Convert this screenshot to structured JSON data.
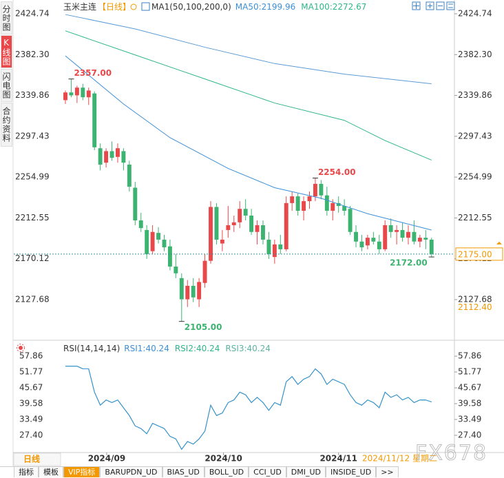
{
  "sidebar": [
    "分时图",
    "K线图",
    "闪电图",
    "合约资料"
  ],
  "header": {
    "symbol": "玉米主连",
    "period": "【日线】",
    "indicator": "MA1(50,100,200,0)"
  },
  "chart_data": [
    {
      "type": "candlestick",
      "xlim": [
        -0.83,
        66.94
      ],
      "ylim": [
        2088.3,
        2435.5
      ],
      "yticks": [
        2424.74,
        {
          "value": 2382.3,
          "label": "2382.30"
        },
        2339.86,
        2297.43,
        2254.99,
        2212.55,
        2170.12,
        2127.68
      ],
      "xticks": [
        {
          "value": 7.1,
          "label": "2024/09"
        },
        {
          "value": 27.2,
          "label": "2024/10"
        },
        {
          "value": 47,
          "label": "2024/11"
        }
      ],
      "grid": false,
      "up_color": "#e8484a",
      "down_color": "#3cb371",
      "candles": {
        "open": [
          2335,
          2343,
          2340,
          2348,
          2338,
          2342,
          2285,
          2270,
          2282,
          2276,
          2282,
          2268,
          2244,
          2210,
          2200,
          2178,
          2197,
          2190,
          2183,
          2162,
          2150,
          2128,
          2142,
          2128,
          2145,
          2168,
          2224,
          2186,
          2200,
          2205,
          2208,
          2222,
          2215,
          2198,
          2205,
          2190,
          2172,
          2185,
          2180,
          2228,
          2235,
          2220,
          2230,
          2235,
          2248,
          2236,
          2220,
          2228,
          2225,
          2222,
          2198,
          2188,
          2184,
          2192,
          2188,
          2180,
          2205,
          2198,
          2200,
          2192,
          2198,
          2188,
          2192,
          2190
        ],
        "high": [
          2345,
          2357,
          2350,
          2352,
          2348,
          2344,
          2290,
          2285,
          2292,
          2290,
          2285,
          2272,
          2250,
          2218,
          2205,
          2205,
          2203,
          2195,
          2190,
          2175,
          2155,
          2148,
          2150,
          2150,
          2175,
          2230,
          2228,
          2200,
          2225,
          2215,
          2230,
          2232,
          2222,
          2210,
          2210,
          2198,
          2190,
          2195,
          2235,
          2240,
          2238,
          2235,
          2240,
          2254,
          2252,
          2245,
          2232,
          2235,
          2232,
          2225,
          2205,
          2195,
          2195,
          2198,
          2195,
          2210,
          2212,
          2205,
          2208,
          2205,
          2210,
          2195,
          2200,
          2192
        ],
        "low": [
          2331,
          2338,
          2332,
          2335,
          2330,
          2283,
          2262,
          2265,
          2272,
          2270,
          2262,
          2240,
          2205,
          2198,
          2170,
          2175,
          2186,
          2178,
          2158,
          2150,
          2105,
          2120,
          2125,
          2120,
          2140,
          2165,
          2185,
          2178,
          2192,
          2198,
          2202,
          2210,
          2195,
          2185,
          2185,
          2170,
          2165,
          2175,
          2178,
          2220,
          2215,
          2210,
          2222,
          2230,
          2232,
          2215,
          2210,
          2218,
          2215,
          2195,
          2182,
          2178,
          2180,
          2185,
          2175,
          2178,
          2192,
          2185,
          2188,
          2185,
          2185,
          2182,
          2180,
          2172
        ],
        "close": [
          2343,
          2340,
          2348,
          2338,
          2345,
          2286,
          2268,
          2282,
          2275,
          2285,
          2270,
          2245,
          2210,
          2202,
          2175,
          2198,
          2190,
          2182,
          2162,
          2155,
          2128,
          2142,
          2130,
          2146,
          2168,
          2224,
          2190,
          2190,
          2205,
          2208,
          2222,
          2215,
          2198,
          2205,
          2190,
          2175,
          2185,
          2180,
          2228,
          2235,
          2220,
          2230,
          2235,
          2248,
          2236,
          2220,
          2228,
          2225,
          2220,
          2198,
          2188,
          2182,
          2192,
          2188,
          2180,
          2205,
          2198,
          2200,
          2192,
          2198,
          2188,
          2192,
          2190,
          2175
        ]
      },
      "series": [
        {
          "name": "MA50:2199.96",
          "color": "#3b8fd8",
          "x": [
            0,
            10,
            18,
            28,
            36,
            44,
            52,
            63
          ],
          "values": [
            2381,
            2331,
            2296,
            2264,
            2244,
            2233,
            2217,
            2199.96
          ]
        },
        {
          "name": "MA100:2272.67",
          "color": "#2fb58a",
          "x": [
            0,
            12,
            24,
            36,
            48,
            55,
            63
          ],
          "values": [
            2407,
            2382,
            2357,
            2332,
            2314,
            2293,
            2272.67
          ]
        },
        {
          "color": "#5b9bd5",
          "x": [
            0,
            12,
            24,
            36,
            48,
            63
          ],
          "values": [
            2424,
            2409,
            2390,
            2373,
            2362,
            2352
          ]
        }
      ],
      "annotations": [
        {
          "at": 1,
          "anchor": "high",
          "text": "2357.00",
          "color": "#e8484a"
        },
        {
          "at": 43,
          "anchor": "high",
          "text": "2254.00",
          "color": "#e8484a"
        },
        {
          "at": 20,
          "anchor": "low",
          "text": "2105.00",
          "color": "#3cb371"
        },
        {
          "at": 63,
          "anchor": "low",
          "text": "2172.00",
          "color": "#3cb371"
        }
      ],
      "price_tags": [
        {
          "value": 2175,
          "label": "2175.00",
          "boxed": true
        },
        {
          "value": 2112.4,
          "label": "2112.40",
          "boxed": false
        }
      ]
    },
    {
      "type": "line",
      "title": "RSI(14,14,14)",
      "ylim": [
        21.3,
        62.4
      ],
      "xlim": [
        -0.83,
        66.94
      ],
      "yticks": [
        57.86,
        51.77,
        45.67,
        39.58,
        33.49,
        {
          "value": 27.4,
          "label": "27.40"
        }
      ],
      "series": [
        {
          "name": "RSI1:40.24",
          "color": "#3b8fd8",
          "values": [
            54,
            54,
            54,
            53,
            53,
            44,
            39,
            41,
            40,
            41,
            38,
            35,
            31,
            30,
            28,
            32,
            31,
            30,
            27,
            26,
            22,
            25,
            24,
            26,
            29,
            39,
            35,
            36,
            40,
            41,
            44,
            43,
            40,
            42,
            40,
            37,
            40,
            39,
            48,
            50,
            47,
            49,
            50,
            53,
            51,
            47,
            49,
            48,
            47,
            43,
            40,
            39,
            41,
            40,
            38,
            44,
            42,
            43,
            41,
            42,
            40,
            41,
            41,
            40.24
          ]
        },
        {
          "name": "RSI2:40.24",
          "color": "#2fb58a",
          "values": [
            54,
            54,
            54,
            53,
            53,
            44,
            39,
            41,
            40,
            41,
            38,
            35,
            31,
            30,
            28,
            32,
            31,
            30,
            27,
            26,
            22,
            25,
            24,
            26,
            29,
            39,
            35,
            36,
            40,
            41,
            44,
            43,
            40,
            42,
            40,
            37,
            40,
            39,
            48,
            50,
            47,
            49,
            50,
            53,
            51,
            47,
            49,
            48,
            47,
            43,
            40,
            39,
            41,
            40,
            38,
            44,
            42,
            43,
            41,
            42,
            40,
            41,
            41,
            40.24
          ]
        },
        {
          "name": "RSI3:40.24",
          "color": "#5ab4a0",
          "values": [
            54,
            54,
            54,
            53,
            53,
            44,
            39,
            41,
            40,
            41,
            38,
            35,
            31,
            30,
            28,
            32,
            31,
            30,
            27,
            26,
            22,
            25,
            24,
            26,
            29,
            39,
            35,
            36,
            40,
            41,
            44,
            43,
            40,
            42,
            40,
            37,
            40,
            39,
            48,
            50,
            47,
            49,
            50,
            53,
            51,
            47,
            49,
            48,
            47,
            43,
            40,
            39,
            41,
            40,
            38,
            44,
            42,
            43,
            41,
            42,
            40,
            41,
            41,
            40.24
          ]
        }
      ]
    }
  ],
  "period_button": "日线",
  "cursor_date": "2024/11/12 星期二",
  "watermark": "FX678",
  "toolbar": [
    "指标",
    "模板",
    "VIP指标",
    "BARUPDN_UD",
    "BIAS_UD",
    "BOLL_UD",
    "CCI_UD",
    "DMI_UD",
    "INSIDE_UD",
    ">>"
  ]
}
